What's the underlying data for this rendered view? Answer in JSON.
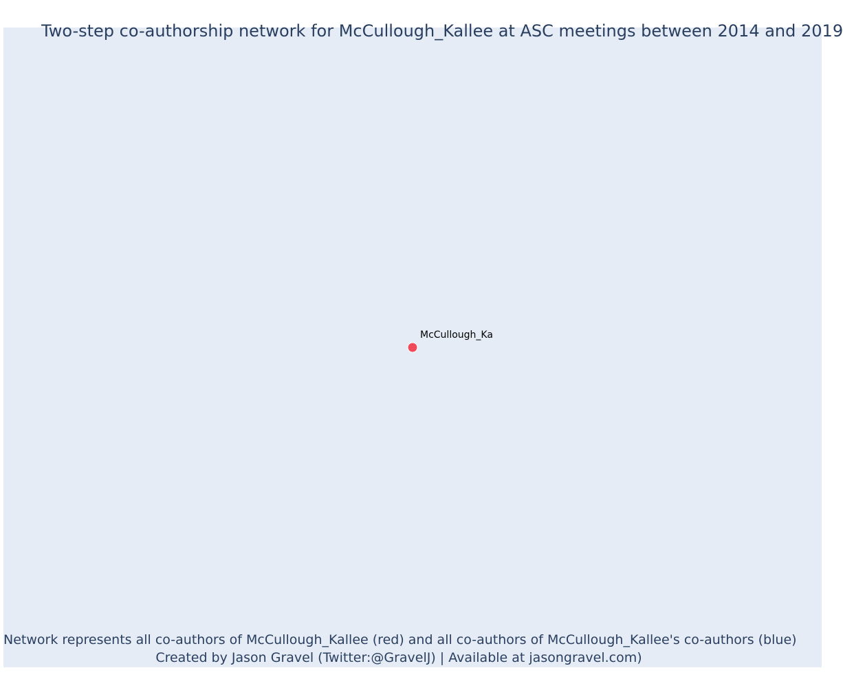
{
  "title": "Two-step co-authorship network for McCullough_Kallee at ASC meetings between 2014 and 2019",
  "caption": {
    "line1": "Network represents all co-authors of McCullough_Kallee (red) and all co-authors of McCullough_Kallee's co-authors (blue)",
    "line2": "Created by Jason Gravel (Twitter:@GravelJ) | Available at jasongravel.com)"
  },
  "colors": {
    "background": "#e5ecf6",
    "title_text": "#2a3f5f",
    "focal_node": "#ef4a5a",
    "node_outline": "#ffffff"
  },
  "nodes": [
    {
      "label": "McCullough_Ka",
      "role": "focal"
    }
  ],
  "edges": []
}
